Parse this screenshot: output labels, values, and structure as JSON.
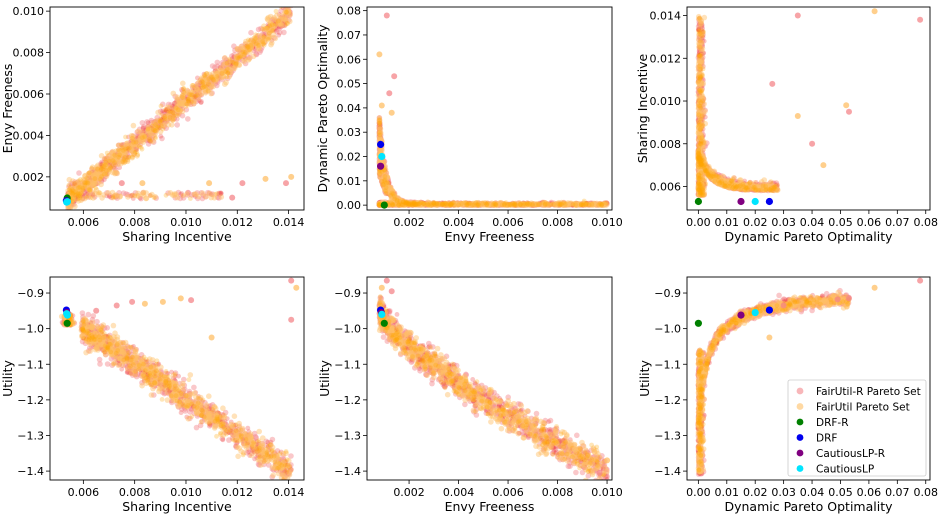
{
  "chart_data": [
    {
      "type": "scatter",
      "xlabel": "Sharing Incentive",
      "ylabel": "Envy Freeness",
      "xlim": [
        0.0047,
        0.0146
      ],
      "ylim": [
        0.0004,
        0.0102
      ],
      "xticks": [
        "0.006",
        "0.008",
        "0.010",
        "0.012",
        "0.014"
      ],
      "yticks": [
        "0.002",
        "0.004",
        "0.006",
        "0.008",
        "0.010"
      ],
      "cloud": {
        "shape": "linear",
        "x0": 0.0054,
        "y0": 0.0009,
        "x1": 0.0141,
        "y1": 0.0099,
        "spread": 0.00028,
        "floor_y": 0.00095
      },
      "outliers": [
        [
          0.0122,
          0.0017
        ],
        [
          0.0131,
          0.0019
        ],
        [
          0.0139,
          0.0017
        ],
        [
          0.0141,
          0.002
        ],
        [
          0.0118,
          0.001
        ],
        [
          0.0109,
          0.0017
        ],
        [
          0.0075,
          0.0017
        ],
        [
          0.0083,
          0.0017
        ]
      ],
      "markers": [
        [
          0.00537,
          0.00098
        ],
        [
          0.00534,
          0.00085
        ],
        [
          0.00536,
          0.00082
        ],
        [
          0.00538,
          0.0008
        ],
        [
          0.00535,
          0.00078
        ]
      ],
      "grid": false,
      "legend": "none"
    },
    {
      "type": "scatter",
      "xlabel": "Envy Freeness",
      "ylabel": "Dynamic Pareto Optimality",
      "xlim": [
        0.0003,
        0.0102
      ],
      "ylim": [
        -0.002,
        0.0815
      ],
      "xticks": [
        "0.002",
        "0.004",
        "0.006",
        "0.008",
        "0.010"
      ],
      "yticks": [
        "0.00",
        "0.01",
        "0.02",
        "0.03",
        "0.04",
        "0.05",
        "0.06",
        "0.07",
        "0.08"
      ],
      "cloud": {
        "shape": "decay",
        "x0": 0.0008,
        "x1": 0.0101,
        "peak": 0.03,
        "rate": 3500,
        "spread": 0.003
      },
      "outliers": [
        [
          0.0011,
          0.078
        ],
        [
          0.0008,
          0.062
        ],
        [
          0.0014,
          0.053
        ],
        [
          0.0009,
          0.041
        ],
        [
          0.0012,
          0.046
        ],
        [
          0.0013,
          0.038
        ]
      ],
      "markers": [
        [
          0.001,
          0.0
        ],
        [
          0.00085,
          0.025
        ],
        [
          0.00085,
          0.016
        ],
        [
          0.0009,
          0.02
        ]
      ],
      "grid": false,
      "legend": "none"
    },
    {
      "type": "scatter",
      "xlabel": "Dynamic Pareto Optimality",
      "ylabel": "Sharing Incentive",
      "xlim": [
        -0.004,
        0.0815
      ],
      "ylim": [
        0.0049,
        0.0144
      ],
      "xticks": [
        "0.00",
        "0.01",
        "0.02",
        "0.03",
        "0.04",
        "0.05",
        "0.06",
        "0.07",
        "0.08"
      ],
      "yticks": [
        "0.006",
        "0.008",
        "0.010",
        "0.012",
        "0.014"
      ],
      "cloud": {
        "shape": "ushape",
        "x_min": 0.0,
        "x_max": 0.055,
        "y_min": 0.0056,
        "y_top": 0.014
      },
      "outliers": [
        [
          0.035,
          0.014
        ],
        [
          0.062,
          0.0142
        ],
        [
          0.078,
          0.0138
        ],
        [
          0.052,
          0.0098
        ],
        [
          0.053,
          0.0095
        ],
        [
          0.035,
          0.0093
        ],
        [
          0.04,
          0.008
        ],
        [
          0.044,
          0.007
        ],
        [
          0.026,
          0.0108
        ]
      ],
      "markers": [
        [
          0.0,
          0.0053
        ],
        [
          0.025,
          0.0053
        ],
        [
          0.015,
          0.0053
        ],
        [
          0.02,
          0.0053
        ]
      ],
      "grid": false,
      "legend": "none"
    },
    {
      "type": "scatter",
      "xlabel": "Sharing Incentive",
      "ylabel": "Utility",
      "xlim": [
        0.0047,
        0.0146
      ],
      "ylim": [
        -1.425,
        -0.855
      ],
      "xticks": [
        "0.006",
        "0.008",
        "0.010",
        "0.012",
        "0.014"
      ],
      "yticks": [
        "-0.9",
        "-1.0",
        "-1.1",
        "-1.2",
        "-1.3",
        "-1.4"
      ],
      "cloud": {
        "shape": "linear",
        "x0": 0.0054,
        "y0": -0.97,
        "x1": 0.0141,
        "y1": -1.4,
        "spread": 0.02,
        "hook": true
      },
      "outliers": [
        [
          0.0141,
          -0.865
        ],
        [
          0.0143,
          -0.885
        ],
        [
          0.0141,
          -0.975
        ],
        [
          0.0098,
          -0.915
        ],
        [
          0.0102,
          -0.92
        ],
        [
          0.0091,
          -0.925
        ],
        [
          0.0079,
          -0.925
        ],
        [
          0.0084,
          -0.93
        ],
        [
          0.0073,
          -0.935
        ],
        [
          0.011,
          -1.025
        ],
        [
          0.0065,
          -0.95
        ]
      ],
      "markers": [
        [
          0.00537,
          -0.985
        ],
        [
          0.00534,
          -0.948
        ],
        [
          0.00536,
          -0.955
        ],
        [
          0.00538,
          -0.962
        ],
        [
          0.00535,
          -0.958
        ]
      ],
      "grid": false,
      "legend": "none"
    },
    {
      "type": "scatter",
      "xlabel": "Envy Freeness",
      "ylabel": "Utility",
      "xlim": [
        0.0003,
        0.0102
      ],
      "ylim": [
        -1.425,
        -0.855
      ],
      "xticks": [
        "0.002",
        "0.004",
        "0.006",
        "0.008",
        "0.010"
      ],
      "yticks": [
        "-0.9",
        "-1.0",
        "-1.1",
        "-1.2",
        "-1.3",
        "-1.4"
      ],
      "cloud": {
        "shape": "curve",
        "x0": 0.0008,
        "y0": -0.95,
        "x1": 0.01,
        "y1": -1.4,
        "spread": 0.02
      },
      "outliers": [
        [
          0.0011,
          -0.865
        ],
        [
          0.0009,
          -0.885
        ],
        [
          0.0013,
          -0.895
        ],
        [
          0.01,
          -1.37
        ],
        [
          0.0097,
          -1.405
        ],
        [
          0.0087,
          -1.34
        ]
      ],
      "markers": [
        [
          0.001,
          -0.985
        ],
        [
          0.00085,
          -0.948
        ],
        [
          0.00088,
          -0.955
        ],
        [
          0.0009,
          -0.96
        ]
      ],
      "grid": false,
      "legend": "none"
    },
    {
      "type": "scatter",
      "xlabel": "Dynamic Pareto Optimality",
      "ylabel": "Utility",
      "xlim": [
        -0.004,
        0.0815
      ],
      "ylim": [
        -1.425,
        -0.855
      ],
      "xticks": [
        "0.00",
        "0.01",
        "0.02",
        "0.03",
        "0.04",
        "0.05",
        "0.06",
        "0.07",
        "0.08"
      ],
      "yticks": [
        "-0.9",
        "-1.0",
        "-1.1",
        "-1.2",
        "-1.3",
        "-1.4"
      ],
      "cloud": {
        "shape": "concave",
        "x_min": 0.0,
        "x_max": 0.053,
        "y_min": -1.41,
        "y_max": -0.915
      },
      "outliers": [
        [
          0.078,
          -0.865
        ],
        [
          0.062,
          -0.885
        ],
        [
          0.053,
          -0.915
        ],
        [
          0.045,
          -0.925
        ],
        [
          0.049,
          -0.918
        ],
        [
          0.025,
          -1.025
        ],
        [
          0.03,
          -0.935
        ]
      ],
      "markers": [
        [
          0.0,
          -0.985
        ],
        [
          0.025,
          -0.948
        ],
        [
          0.015,
          -0.962
        ],
        [
          0.02,
          -0.955
        ]
      ],
      "grid": false,
      "legend": "lower right"
    }
  ],
  "series": [
    {
      "name": "FairUtil-R Pareto Set",
      "color": "#f4858a"
    },
    {
      "name": "FairUtil Pareto Set",
      "color": "#ffbf66"
    },
    {
      "name": "DRF-R",
      "color": "#008000"
    },
    {
      "name": "DRF",
      "color": "#0000ee"
    },
    {
      "name": "CautiousLP-R",
      "color": "#800080"
    },
    {
      "name": "CautiousLP",
      "color": "#00e5ff"
    }
  ],
  "colors": {
    "dense_red": "#ee3333",
    "dense_orange": "#ffa500"
  }
}
